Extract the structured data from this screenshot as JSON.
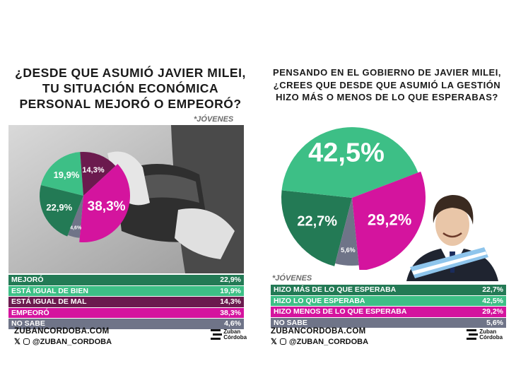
{
  "left": {
    "title_lines": [
      "¿Desde que asumió Javier Milei,",
      "tu situación económica",
      "personal mejoró o empeoró?"
    ],
    "tag": "*JÓVENES",
    "footer_site": "ZUBANCORDOBA.COM",
    "footer_handle": "@ZUBAN_CORDOBA",
    "logo_line1": "Zuban",
    "logo_line2": "Córdoba"
  },
  "right": {
    "title_lines": [
      "Pensando en el gobierno de Javier Milei,",
      "¿crees que desde que asumió la gestión",
      "hizo más o menos de lo que esperabas?"
    ],
    "tag": "*JÓVENES",
    "footer_site": "ZUBANCORDOBA.COM",
    "footer_handle": "@ZUBAN_CORDOBA",
    "logo_line1": "Zuban",
    "logo_line2": "Córdoba"
  },
  "colors": {
    "green_dark": "#237a55",
    "green_light": "#3dbf86",
    "purple": "#6b1a4e",
    "magenta": "#d4149e",
    "gray": "#6f7488"
  },
  "chart_data": [
    {
      "type": "pie",
      "title": "¿Desde que asumió Javier Milei, tu situación económica personal mejoró o empeoró?",
      "categories": [
        "Mejoró",
        "Está igual de bien",
        "Está igual de mal",
        "Empeoró",
        "No sabe"
      ],
      "values": [
        22.9,
        19.9,
        14.3,
        38.3,
        4.6
      ],
      "labels": [
        "22,9%",
        "19,9%",
        "14,3%",
        "38,3%",
        "4,6%"
      ],
      "colors": [
        "#237a55",
        "#3dbf86",
        "#6b1a4e",
        "#d4149e",
        "#6f7488"
      ]
    },
    {
      "type": "pie",
      "title": "Pensando en el gobierno de Javier Milei, ¿crees que desde que asumió la gestión hizo más o menos de lo que esperabas?",
      "categories": [
        "Hizo más de lo que esperaba",
        "Hizo lo que esperaba",
        "Hizo menos de lo que esperaba",
        "No sabe"
      ],
      "values": [
        22.7,
        42.5,
        29.2,
        5.6
      ],
      "labels": [
        "22,7%",
        "42,5%",
        "29,2%",
        "5,6%"
      ],
      "colors": [
        "#237a55",
        "#3dbf86",
        "#d4149e",
        "#6f7488"
      ]
    }
  ]
}
